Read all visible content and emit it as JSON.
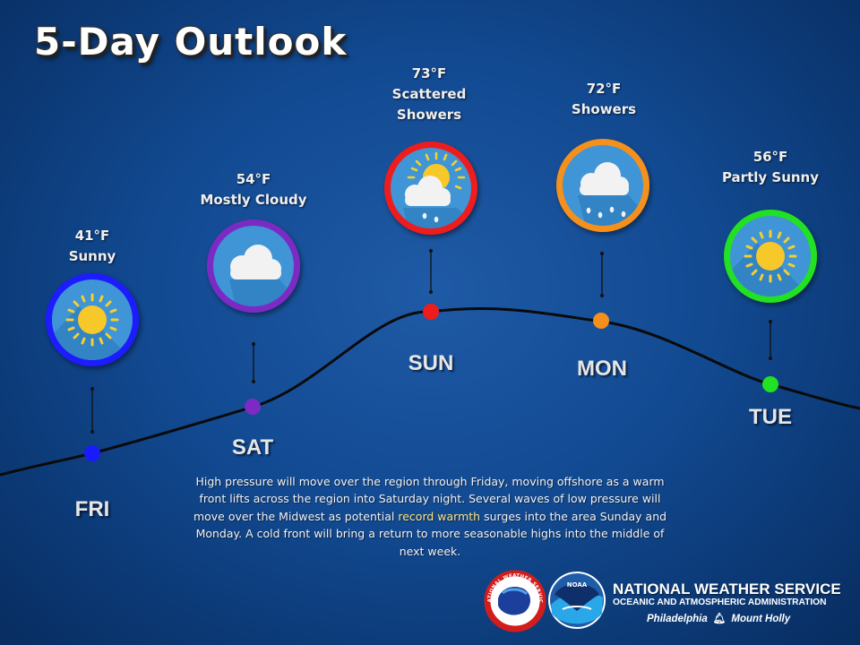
{
  "title": "5-Day Outlook",
  "days": [
    {
      "day": "FRI",
      "temp": "41°F",
      "cond1": "Sunny",
      "cond2": "",
      "icon": "sun-icon",
      "color": "#1a1aff"
    },
    {
      "day": "SAT",
      "temp": "54°F",
      "cond1": "Mostly Cloudy",
      "cond2": "",
      "icon": "cloud-icon",
      "color": "#7b2bc4"
    },
    {
      "day": "SUN",
      "temp": "73°F",
      "cond1": "Scattered",
      "cond2": "Showers",
      "icon": "sun-cloud-rain-icon",
      "color": "#ee1c1c"
    },
    {
      "day": "MON",
      "temp": "72°F",
      "cond1": "Showers",
      "cond2": "",
      "icon": "rain-cloud-icon",
      "color": "#f5901e"
    },
    {
      "day": "TUE",
      "temp": "56°F",
      "cond1": "Partly Sunny",
      "cond2": "",
      "icon": "sun-icon",
      "color": "#22e022"
    }
  ],
  "summary": {
    "before": "High pressure will move over the region through Friday, moving offshore as a warm front lifts across the region into Saturday night. Several waves of low pressure will move over the Midwest as potential ",
    "highlight": "record warmth",
    "after": " surges into the area Sunday and Monday. A cold front will bring a return to more seasonable highs into the middle of next week."
  },
  "footer": {
    "agency": "NATIONAL WEATHER SERVICE",
    "parent": "OCEANIC AND ATMOSPHERIC ADMINISTRATION",
    "office1": "Philadelphia",
    "office2": "Mount Holly",
    "nws_logo_text": "NATIONAL WEATHER SERVICE",
    "noaa_logo_text": "NOAA"
  }
}
